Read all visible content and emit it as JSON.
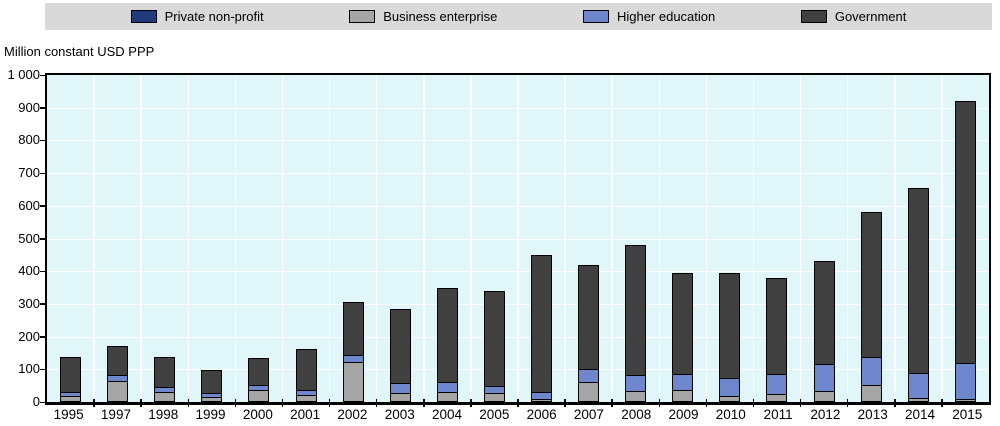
{
  "colors": {
    "page_bg": "#ffffff",
    "legend_bg": "#d9d9d9",
    "plot_bg": "#e0f6f8",
    "grid": "#ffffff",
    "axis": "#000000",
    "bar_border": "#000000"
  },
  "chart_data": {
    "type": "bar",
    "stacked": true,
    "title": "",
    "ylabel": "Million constant USD PPP",
    "xlabel": "",
    "ylim": [
      0,
      1000
    ],
    "ytick_interval": 100,
    "ytick_labels": [
      "1 000",
      "900",
      "800",
      "700",
      "600",
      "500",
      "400",
      "300",
      "200",
      "100",
      "0"
    ],
    "grid": true,
    "legend_position": "top",
    "categories": [
      "1995",
      "1997",
      "1998",
      "1999",
      "2000",
      "2001",
      "2002",
      "2003",
      "2004",
      "2005",
      "2006",
      "2007",
      "2008",
      "2009",
      "2010",
      "2011",
      "2012",
      "2013",
      "2014",
      "2015"
    ],
    "series": [
      {
        "name": "Private non-profit",
        "color": "#1f3b7a",
        "values": [
          0,
          0,
          0,
          0,
          0,
          0,
          0,
          0,
          0,
          0,
          0,
          0,
          0,
          0,
          0,
          0,
          0,
          0,
          0,
          0
        ]
      },
      {
        "name": "Business enterprise",
        "color": "#a5a5a5",
        "values": [
          17,
          65,
          32,
          15,
          38,
          22,
          122,
          27,
          32,
          27,
          8,
          62,
          35,
          37,
          17,
          25,
          35,
          52,
          13,
          10
        ]
      },
      {
        "name": "Higher education",
        "color": "#6e86cc",
        "values": [
          13,
          17,
          15,
          13,
          14,
          16,
          23,
          30,
          28,
          21,
          24,
          38,
          47,
          50,
          55,
          62,
          80,
          85,
          77,
          110
        ]
      },
      {
        "name": "Government",
        "color": "#404040",
        "values": [
          107,
          90,
          91,
          70,
          83,
          125,
          162,
          228,
          290,
          292,
          418,
          320,
          398,
          308,
          323,
          293,
          315,
          443,
          565,
          800
        ]
      }
    ],
    "totals": [
      137,
      172,
      138,
      98,
      135,
      163,
      307,
      285,
      350,
      340,
      450,
      420,
      480,
      395,
      395,
      380,
      430,
      580,
      655,
      920
    ]
  }
}
